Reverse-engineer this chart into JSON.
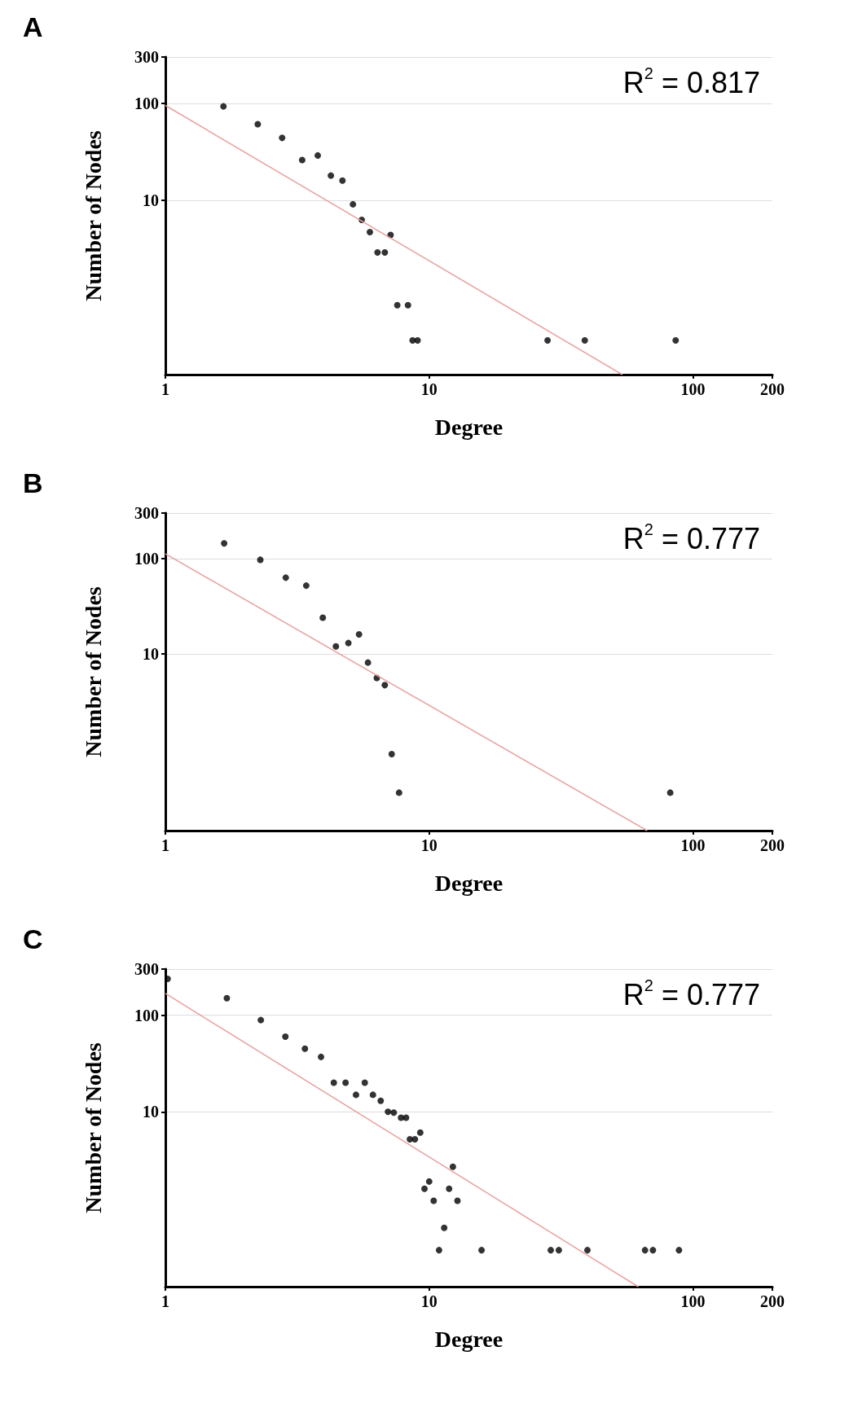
{
  "chart_data": [
    {
      "type": "scatter",
      "title": "A",
      "xlabel": "Degree",
      "ylabel": "Number of Nodes",
      "log": "xy",
      "xlim": [
        1,
        200
      ],
      "ylim": [
        0.16,
        300
      ],
      "xticks": [
        1,
        10,
        100,
        200
      ],
      "yticks": [
        10,
        100,
        300
      ],
      "grid": "y",
      "annotations": [
        "R$^{2}$ = 0.817"
      ],
      "series": [
        {
          "type": "scatter",
          "marker": "circle",
          "color": "#000000",
          "x": [
            1.66,
            2.24,
            2.77,
            3.3,
            3.78,
            4.24,
            4.69,
            5.14,
            5.55,
            5.96,
            7.14,
            6.37,
            6.79,
            7.57,
            8.31,
            8.65,
            9.04,
            28.1,
            38.9,
            86
          ],
          "values": [
            93,
            61,
            44,
            26,
            29,
            18,
            16,
            9.1,
            6.3,
            4.7,
            4.4,
            2.9,
            2.9,
            0.83,
            0.83,
            0.36,
            0.36,
            0.36,
            0.36,
            0.36
          ]
        },
        {
          "type": "line",
          "marker": "none",
          "color": "#e8a0a0",
          "x": [
            1,
            54
          ],
          "values": [
            95,
            0.16
          ]
        }
      ]
    },
    {
      "type": "scatter",
      "title": "B",
      "xlabel": "Degree",
      "ylabel": "Number of Nodes",
      "log": "xy",
      "xlim": [
        1,
        200
      ],
      "ylim": [
        0.14,
        300
      ],
      "xticks": [
        1,
        10,
        100,
        200
      ],
      "yticks": [
        10,
        100,
        300
      ],
      "grid": "y",
      "annotations": [
        "R$^{2}$ = 0.777"
      ],
      "series": [
        {
          "type": "scatter",
          "marker": "circle",
          "color": "#000000",
          "x": [
            1.67,
            2.29,
            2.86,
            3.42,
            3.95,
            4.43,
            4.94,
            5.42,
            5.86,
            6.33,
            6.79,
            7.21,
            7.69,
            82
          ],
          "values": [
            144,
            97,
            63,
            52,
            24,
            12,
            13,
            16,
            8.1,
            5.6,
            4.7,
            0.89,
            0.35,
            0.35
          ]
        },
        {
          "type": "line",
          "marker": "none",
          "color": "#e8a0a0",
          "x": [
            1,
            67
          ],
          "values": [
            112,
            0.14
          ]
        }
      ]
    },
    {
      "type": "scatter",
      "title": "C",
      "xlabel": "Degree",
      "ylabel": "Number of Nodes",
      "log": "xy",
      "xlim": [
        1,
        200
      ],
      "ylim": [
        0.155,
        300
      ],
      "xticks": [
        1,
        10,
        100,
        200
      ],
      "yticks": [
        10,
        100,
        300
      ],
      "grid": "y",
      "annotations": [
        "R$^{2}$ = 0.777"
      ],
      "series": [
        {
          "type": "scatter",
          "marker": "circle",
          "color": "#000000",
          "x": [
            1.02,
            1.71,
            2.3,
            2.85,
            3.38,
            3.89,
            4.35,
            4.82,
            5.28,
            5.7,
            6.12,
            6.55,
            6.98,
            7.34,
            7.82,
            8.17,
            8.45,
            8.83,
            9.25,
            12.3,
            10,
            9.6,
            11.9,
            10.4,
            12.8,
            11.4,
            10.9,
            15.8,
            28.9,
            31,
            39.8,
            65.8,
            70.5,
            88.5
          ],
          "values": [
            238,
            150,
            89,
            60,
            45,
            37,
            20,
            20,
            15,
            20,
            15,
            13,
            10,
            9.8,
            8.7,
            8.7,
            5.2,
            5.2,
            6.1,
            2.7,
            1.9,
            1.6,
            1.6,
            1.2,
            1.2,
            0.63,
            0.37,
            0.37,
            0.37,
            0.37,
            0.37,
            0.37,
            0.37,
            0.37
          ]
        },
        {
          "type": "line",
          "marker": "none",
          "color": "#e8a0a0",
          "x": [
            1,
            62
          ],
          "values": [
            168,
            0.155
          ]
        }
      ]
    }
  ]
}
